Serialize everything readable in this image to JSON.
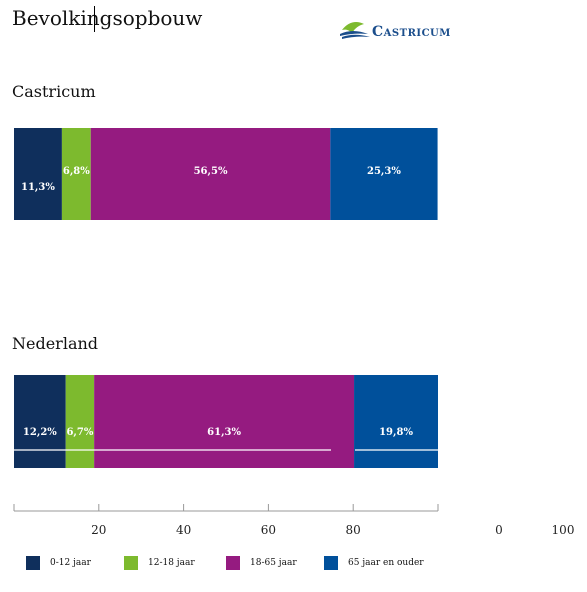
{
  "title": "Bevolkingsopbouw",
  "logo": {
    "text": "CASTRICUM"
  },
  "colors": {
    "age_0_12": "#0f2f5c",
    "age_12_18": "#7dba2e",
    "age_18_65": "#951b80",
    "age_65_plus": "#00509b"
  },
  "chart_data": {
    "type": "bar",
    "orientation": "horizontal",
    "stacked": true,
    "categories": [
      "Castricum",
      "Nederland"
    ],
    "series": [
      {
        "name": "0-12 jaar",
        "color": "#0f2f5c",
        "values": [
          11.3,
          12.2
        ],
        "labels": [
          "11,3%",
          "12,2%"
        ]
      },
      {
        "name": "12-18 jaar",
        "color": "#7dba2e",
        "values": [
          6.8,
          6.7
        ],
        "labels": [
          "6,8%",
          "6,7%"
        ]
      },
      {
        "name": "18-65 jaar",
        "color": "#951b80",
        "values": [
          56.5,
          61.3
        ],
        "labels": [
          "56,5%",
          "61,3%"
        ]
      },
      {
        "name": "65 jaar en ouder",
        "color": "#00509b",
        "values": [
          25.3,
          19.8
        ],
        "labels": [
          "25,3%",
          "19,8%"
        ]
      }
    ],
    "xlim": [
      0,
      100
    ],
    "xticks": [
      "20",
      "40",
      "60",
      "80"
    ],
    "extra_tick_labels": [
      "0",
      "100"
    ],
    "legend": "bottom"
  }
}
